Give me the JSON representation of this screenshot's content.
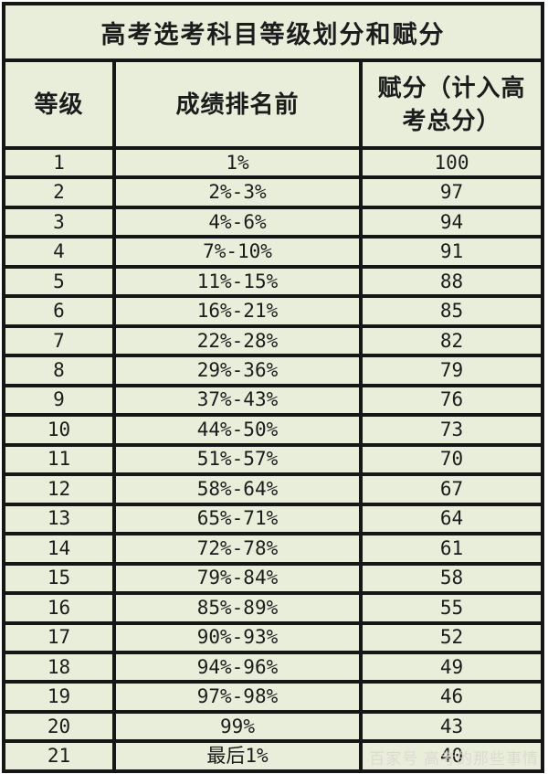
{
  "page_title": "高考选考科目等级划分和赋分",
  "chart_data": {
    "type": "table",
    "title": "高考选考科目等级划分和赋分",
    "columns": [
      "等级",
      "成绩排名前",
      "赋分（计入高考总分）"
    ],
    "rows": [
      [
        "1",
        "1%",
        "100"
      ],
      [
        "2",
        "2%-3%",
        "97"
      ],
      [
        "3",
        "4%-6%",
        "94"
      ],
      [
        "4",
        "7%-10%",
        "91"
      ],
      [
        "5",
        "11%-15%",
        "88"
      ],
      [
        "6",
        "16%-21%",
        "85"
      ],
      [
        "7",
        "22%-28%",
        "82"
      ],
      [
        "8",
        "29%-36%",
        "79"
      ],
      [
        "9",
        "37%-43%",
        "76"
      ],
      [
        "10",
        "44%-50%",
        "73"
      ],
      [
        "11",
        "51%-57%",
        "70"
      ],
      [
        "12",
        "58%-64%",
        "67"
      ],
      [
        "13",
        "65%-71%",
        "64"
      ],
      [
        "14",
        "72%-78%",
        "61"
      ],
      [
        "15",
        "79%-84%",
        "58"
      ],
      [
        "16",
        "85%-89%",
        "55"
      ],
      [
        "17",
        "90%-93%",
        "52"
      ],
      [
        "18",
        "94%-96%",
        "49"
      ],
      [
        "19",
        "97%-98%",
        "46"
      ],
      [
        "20",
        "99%",
        "43"
      ],
      [
        "21",
        "最后1%",
        "40"
      ]
    ]
  },
  "watermark": {
    "text": "百家号 高考的那些事情"
  },
  "colors": {
    "table_background": "#e9eedb",
    "border": "#161616",
    "text": "#1c1c1c",
    "page_background": "#ffffff",
    "watermark": "#ddd6cf"
  }
}
